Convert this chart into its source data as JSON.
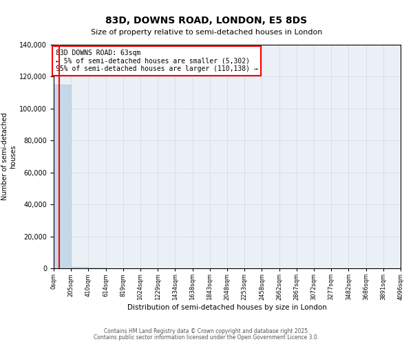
{
  "title": "83D, DOWNS ROAD, LONDON, E5 8DS",
  "subtitle": "Size of property relative to semi-detached houses in London",
  "xlabel": "Distribution of semi-detached houses by size in London",
  "ylabel": "Number of semi-detached\nhouses",
  "property_size": 63,
  "annotation_title": "83D DOWNS ROAD: 63sqm",
  "annotation_line1": "← 5% of semi-detached houses are smaller (5,302)",
  "annotation_line2": "95% of semi-detached houses are larger (110,138) →",
  "bar_color": "#c5d8ea",
  "bar_edge_color": "#aec6d8",
  "vline_color": "red",
  "annotation_box_edgecolor": "red",
  "grid_color": "#d0d8e0",
  "bg_color": "#eaf0f6",
  "ylim": [
    0,
    140000
  ],
  "xlim": [
    0,
    4096
  ],
  "yticks": [
    0,
    20000,
    40000,
    60000,
    80000,
    100000,
    120000,
    140000
  ],
  "footer1": "Contains HM Land Registry data © Crown copyright and database right 2025.",
  "footer2": "Contains public sector information licensed under the Open Government Licence 3.0.",
  "bin_edges": [
    0,
    205,
    410,
    614,
    819,
    1024,
    1229,
    1434,
    1638,
    1843,
    2048,
    2253,
    2458,
    2662,
    2867,
    3072,
    3277,
    3482,
    3686,
    3891,
    4096
  ],
  "bin_labels": [
    "0sqm",
    "205sqm",
    "410sqm",
    "614sqm",
    "819sqm",
    "1024sqm",
    "1229sqm",
    "1434sqm",
    "1638sqm",
    "1843sqm",
    "2048sqm",
    "2253sqm",
    "2458sqm",
    "2662sqm",
    "2867sqm",
    "3072sqm",
    "3277sqm",
    "3482sqm",
    "3686sqm",
    "3891sqm",
    "4096sqm"
  ],
  "bar_heights": [
    115000,
    800,
    300,
    150,
    80,
    50,
    30,
    20,
    15,
    10,
    8,
    6,
    5,
    4,
    3,
    3,
    2,
    2,
    2,
    1
  ]
}
